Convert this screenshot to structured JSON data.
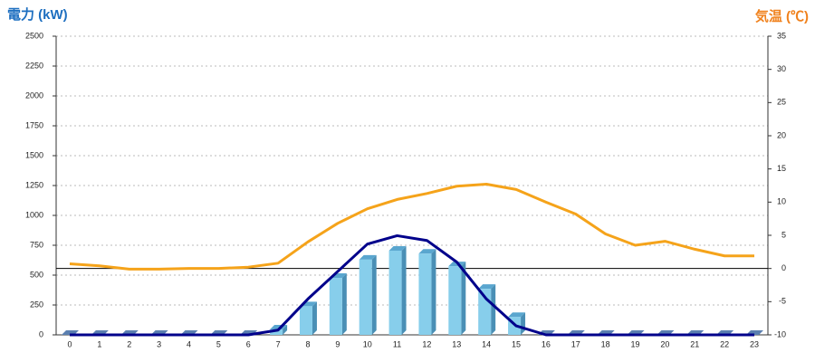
{
  "chart_data": {
    "type": "combo",
    "ylabel": "電力 (kW)",
    "y2label": "気温 (℃)",
    "categories": [
      "0",
      "1",
      "2",
      "3",
      "4",
      "5",
      "6",
      "7",
      "8",
      "9",
      "10",
      "11",
      "12",
      "13",
      "14",
      "15",
      "16",
      "17",
      "18",
      "19",
      "20",
      "21",
      "22",
      "23"
    ],
    "series": [
      {
        "type": "bar",
        "color": "#87ceeb",
        "values": [
          0,
          0,
          0,
          0,
          0,
          0,
          0,
          45,
          240,
          477,
          630,
          705,
          680,
          575,
          385,
          150,
          0,
          0,
          0,
          0,
          0,
          0,
          0,
          0
        ]
      },
      {
        "type": "line",
        "color": "#00008b",
        "values": [
          0,
          0,
          0,
          0,
          0,
          0,
          0,
          40,
          300,
          530,
          760,
          830,
          790,
          610,
          300,
          75,
          0,
          0,
          0,
          0,
          0,
          0,
          0,
          0
        ]
      },
      {
        "type": "line",
        "axis": "y2",
        "color": "#f5a31a",
        "values": [
          0.7,
          0.4,
          -0.1,
          -0.1,
          0,
          0,
          0.2,
          0.8,
          4,
          6.8,
          9,
          10.4,
          11.3,
          12.4,
          12.7,
          11.9,
          10,
          8.2,
          5.2,
          3.5,
          4.1,
          2.9,
          1.9,
          1.9
        ]
      }
    ],
    "ylim": [
      0,
      2500
    ],
    "yticks": [
      0,
      250,
      500,
      750,
      1000,
      1250,
      1500,
      1750,
      2000,
      2250,
      2500
    ],
    "y2lim": [
      -10,
      35
    ],
    "y2ticks": [
      -10,
      -5,
      0,
      5,
      10,
      15,
      20,
      25,
      30,
      35
    ],
    "grid": true
  }
}
